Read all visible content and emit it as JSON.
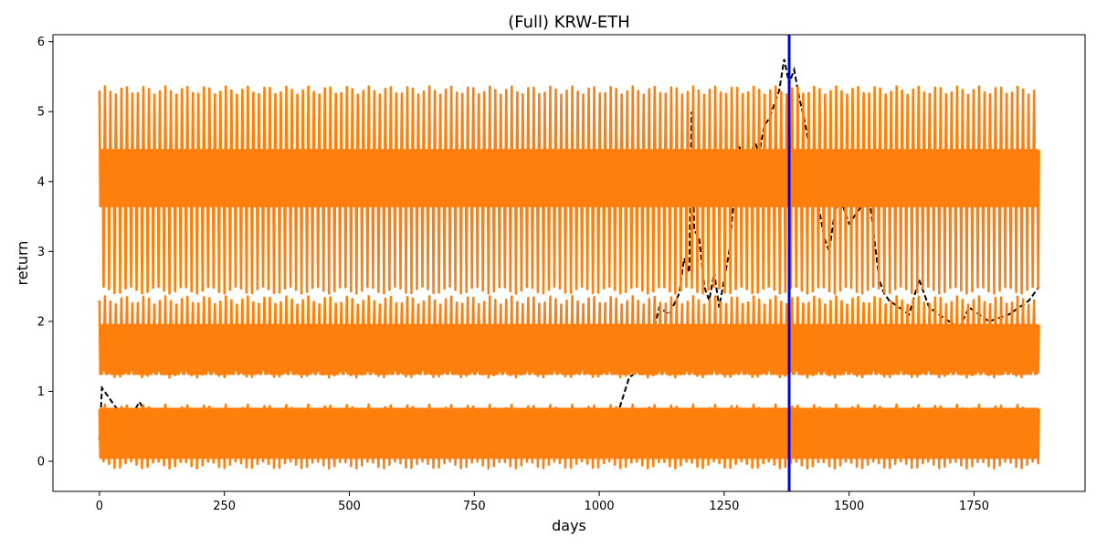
{
  "chart_data": {
    "type": "line",
    "title": "(Full) KRW-ETH",
    "xlabel": "days",
    "ylabel": "return",
    "xlim": [
      -93,
      1972
    ],
    "ylim": [
      -0.43,
      6.1
    ],
    "x_ticks": [
      0,
      250,
      500,
      750,
      1000,
      1250,
      1500,
      1750
    ],
    "x_tick_labels": [
      "0",
      "250",
      "500",
      "750",
      "1000",
      "1250",
      "1500",
      "1750"
    ],
    "y_ticks": [
      0,
      1,
      2,
      3,
      4,
      5,
      6
    ],
    "y_tick_labels": [
      "0",
      "1",
      "2",
      "3",
      "4",
      "5",
      "6"
    ],
    "grid": false,
    "legend": "none",
    "vline": {
      "x": 1380,
      "color": "#0000ff"
    },
    "series": [
      {
        "style": "dashed",
        "color": "#000000",
        "x": [
          0,
          5,
          10,
          20,
          30,
          40,
          60,
          80,
          100,
          150,
          200,
          250,
          300,
          350,
          400,
          450,
          500,
          550,
          600,
          650,
          700,
          750,
          800,
          850,
          900,
          950,
          1000,
          1040,
          1060,
          1080,
          1100,
          1120,
          1140,
          1160,
          1170,
          1180,
          1185,
          1190,
          1200,
          1210,
          1220,
          1230,
          1240,
          1250,
          1260,
          1270,
          1280,
          1290,
          1300,
          1310,
          1320,
          1330,
          1340,
          1350,
          1360,
          1370,
          1380,
          1390,
          1400,
          1410,
          1420,
          1430,
          1440,
          1450,
          1460,
          1470,
          1480,
          1490,
          1500,
          1520,
          1540,
          1560,
          1570,
          1580,
          1600,
          1620,
          1640,
          1650,
          1660,
          1680,
          1700,
          1720,
          1740,
          1760,
          1780,
          1800,
          1820,
          1840,
          1860,
          1880
        ],
        "values": [
          0.3,
          1.05,
          1.0,
          0.9,
          0.8,
          0.7,
          0.6,
          0.85,
          0.6,
          0.4,
          0.35,
          0.3,
          0.25,
          0.2,
          0.3,
          0.25,
          0.3,
          0.4,
          0.35,
          0.3,
          0.35,
          0.4,
          0.45,
          0.5,
          0.55,
          0.6,
          0.7,
          0.75,
          1.2,
          1.3,
          1.6,
          2.2,
          2.1,
          2.4,
          2.9,
          2.7,
          5.0,
          3.3,
          3.2,
          2.5,
          2.3,
          2.7,
          2.2,
          2.6,
          3.0,
          3.8,
          4.5,
          4.3,
          4.2,
          4.6,
          4.4,
          4.8,
          4.9,
          5.1,
          5.3,
          5.75,
          5.4,
          5.6,
          5.2,
          4.9,
          4.5,
          3.9,
          3.6,
          3.2,
          3.0,
          3.5,
          3.8,
          3.6,
          3.4,
          3.6,
          3.8,
          2.6,
          2.4,
          2.3,
          2.2,
          2.1,
          2.6,
          2.4,
          2.2,
          2.1,
          2.0,
          1.9,
          2.2,
          2.1,
          2.0,
          2.05,
          2.1,
          2.2,
          2.3,
          2.5
        ]
      },
      {
        "style": "solid",
        "color": "#ff7f0e",
        "x_start": 0,
        "x_end": 1880,
        "bands": [
          {
            "center": 4.05,
            "inner_amplitude": 0.4,
            "outer_amplitude": 1.2,
            "peak": 5.3,
            "trough": 2.45
          },
          {
            "center": 1.6,
            "inner_amplitude": 0.35,
            "outer_amplitude": 0.65,
            "peak": 2.3,
            "trough": 1.25
          },
          {
            "center": 0.4,
            "inner_amplitude": 0.35,
            "outer_amplitude": 0.45,
            "peak": 0.75,
            "trough": -0.05
          }
        ],
        "period_days": 11
      }
    ]
  }
}
